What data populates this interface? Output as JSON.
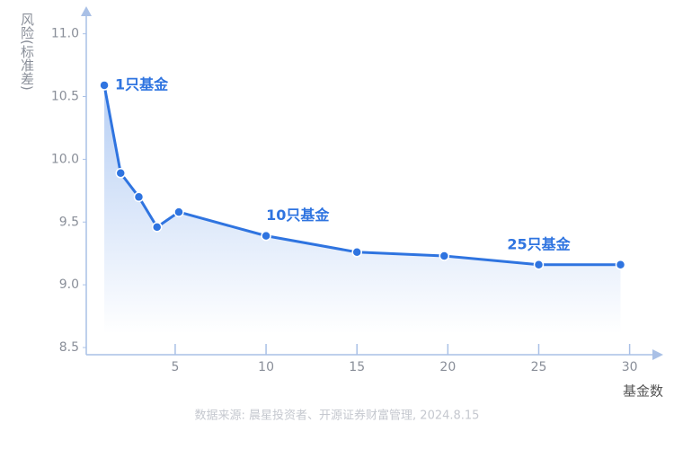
{
  "chart_data": {
    "type": "line",
    "y_label": "风险(标准差)",
    "x_label": "基金数",
    "source": "数据来源: 晨星投资者、开源证券财富管理, 2024.8.15",
    "x": [
      1.1,
      2,
      3,
      4,
      5.2,
      10,
      15,
      19.8,
      25,
      29.5
    ],
    "series": [
      {
        "color": "#2f74e0",
        "values": [
          10.59,
          9.89,
          9.7,
          9.46,
          9.58,
          9.39,
          9.26,
          9.23,
          9.16,
          9.16
        ]
      }
    ],
    "annotations": [
      "1只基金",
      "10只基金",
      "25只基金"
    ],
    "xlim": [
      0,
      31.7
    ],
    "ylim": [
      8.5,
      11.2
    ],
    "xticks": [
      5,
      10,
      15,
      20,
      25,
      30
    ],
    "yticks": [
      8.5,
      {
        "value": 9,
        "label": "9.0"
      },
      9.5,
      {
        "value": 10,
        "label": "10.0"
      },
      10.5,
      {
        "value": 11,
        "label": "11.0"
      }
    ],
    "grid": false
  }
}
